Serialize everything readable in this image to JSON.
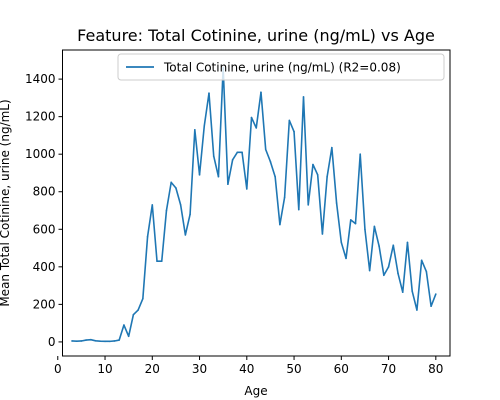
{
  "chart_data": {
    "type": "line",
    "title": "Feature: Total Cotinine, urine (ng/mL) vs Age",
    "xlabel": "Age",
    "ylabel": "Mean Total Cotinine, urine (ng/mL)",
    "xlim": [
      1,
      83
    ],
    "ylim": [
      -75,
      1555
    ],
    "xticks": [
      0,
      10,
      20,
      30,
      40,
      50,
      60,
      70,
      80
    ],
    "yticks": [
      0,
      200,
      400,
      600,
      800,
      1000,
      1200,
      1400
    ],
    "legend_position": "upper right",
    "grid": false,
    "series": [
      {
        "name": "Total Cotinine, urine (ng/mL) (R2=0.08)",
        "color": "#1f77b4",
        "x": [
          3,
          4,
          5,
          6,
          7,
          8,
          9,
          10,
          11,
          12,
          13,
          14,
          15,
          16,
          17,
          18,
          19,
          20,
          21,
          22,
          23,
          24,
          25,
          26,
          27,
          28,
          29,
          30,
          31,
          32,
          33,
          34,
          35,
          36,
          37,
          38,
          39,
          40,
          41,
          42,
          43,
          44,
          45,
          46,
          47,
          48,
          49,
          50,
          51,
          52,
          53,
          54,
          55,
          56,
          57,
          58,
          59,
          60,
          61,
          62,
          63,
          64,
          65,
          66,
          67,
          68,
          69,
          70,
          71,
          72,
          73,
          74,
          75,
          76,
          77,
          78,
          79,
          80
        ],
        "values": [
          5,
          4,
          5,
          10,
          12,
          6,
          4,
          3,
          3,
          5,
          10,
          90,
          30,
          145,
          170,
          230,
          560,
          730,
          430,
          430,
          700,
          850,
          820,
          730,
          570,
          680,
          1130,
          890,
          1150,
          1325,
          990,
          880,
          1460,
          840,
          970,
          1010,
          1010,
          815,
          1195,
          1140,
          1330,
          1025,
          960,
          880,
          625,
          770,
          1180,
          1120,
          705,
          1305,
          730,
          945,
          890,
          575,
          880,
          1035,
          740,
          530,
          445,
          650,
          630,
          1000,
          600,
          380,
          615,
          510,
          355,
          400,
          515,
          365,
          265,
          530,
          270,
          170,
          435,
          375,
          190,
          255
        ]
      }
    ]
  }
}
